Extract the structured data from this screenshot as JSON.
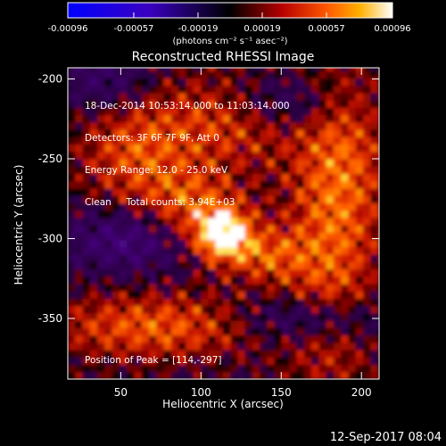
{
  "chart_data": {
    "type": "heatmap",
    "title": "Reconstructed RHESSI Image",
    "xlabel": "Heliocentric X (arcsec)",
    "ylabel": "Heliocentric Y (arcsec)",
    "xlim": [
      17,
      211
    ],
    "ylim": [
      -388,
      -193
    ],
    "x_ticks": [
      50,
      100,
      150,
      200
    ],
    "y_ticks": [
      -200,
      -250,
      -300,
      -350
    ],
    "colorbar": {
      "range": [
        -0.00096,
        0.00096
      ],
      "tick_labels": [
        "-0.00096",
        "-0.00057",
        "-0.00019",
        "0.00019",
        "0.00057",
        "0.00096"
      ],
      "units_label": "(photons cm⁻² s⁻¹ asec⁻²)"
    },
    "peak": {
      "x": 114,
      "y": -297
    },
    "info_lines": [
      "18-Dec-2014 10:53:14.000 to 11:03:14.000",
      "Detectors: 3F 6F 7F 9F, Att 0",
      "Energy Range: 12.0 - 25.0 keV",
      "Clean     Total counts: 3.94E+03"
    ],
    "peak_label": "Position of Peak = [114,-297]",
    "timestamp": "12-Sep-2017 08:04"
  }
}
